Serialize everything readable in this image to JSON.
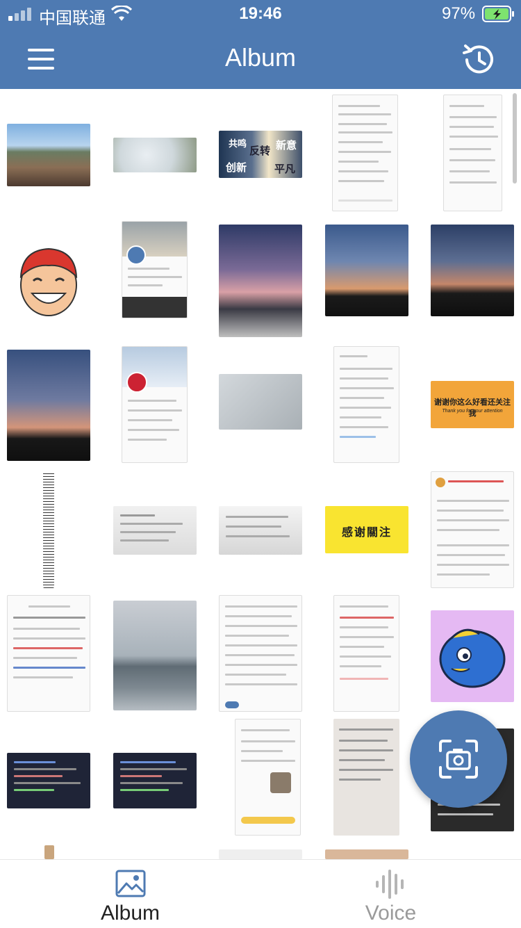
{
  "status_bar": {
    "carrier": "中国联通",
    "time": "19:46",
    "battery": "97%"
  },
  "nav": {
    "title": "Album"
  },
  "icons": {
    "menu": "menu-icon",
    "history": "history-icon",
    "camera": "camera-scan-icon",
    "album": "album-icon",
    "voice": "voice-icon"
  },
  "thumbnails": {
    "poster_text": [
      "共鸣",
      "反转",
      "新意",
      "创新",
      "平凡"
    ],
    "thanks_text": "谢谢你这么好看还关注我",
    "thanks_sub": "Thank you for your attention",
    "yellow_text": "感谢關注"
  },
  "tabs": [
    {
      "label": "Album",
      "active": true
    },
    {
      "label": "Voice",
      "active": false
    }
  ],
  "colors": {
    "primary": "#4e7ab2",
    "tab_inactive": "#9a9a9a",
    "tab_active": "#222222"
  }
}
